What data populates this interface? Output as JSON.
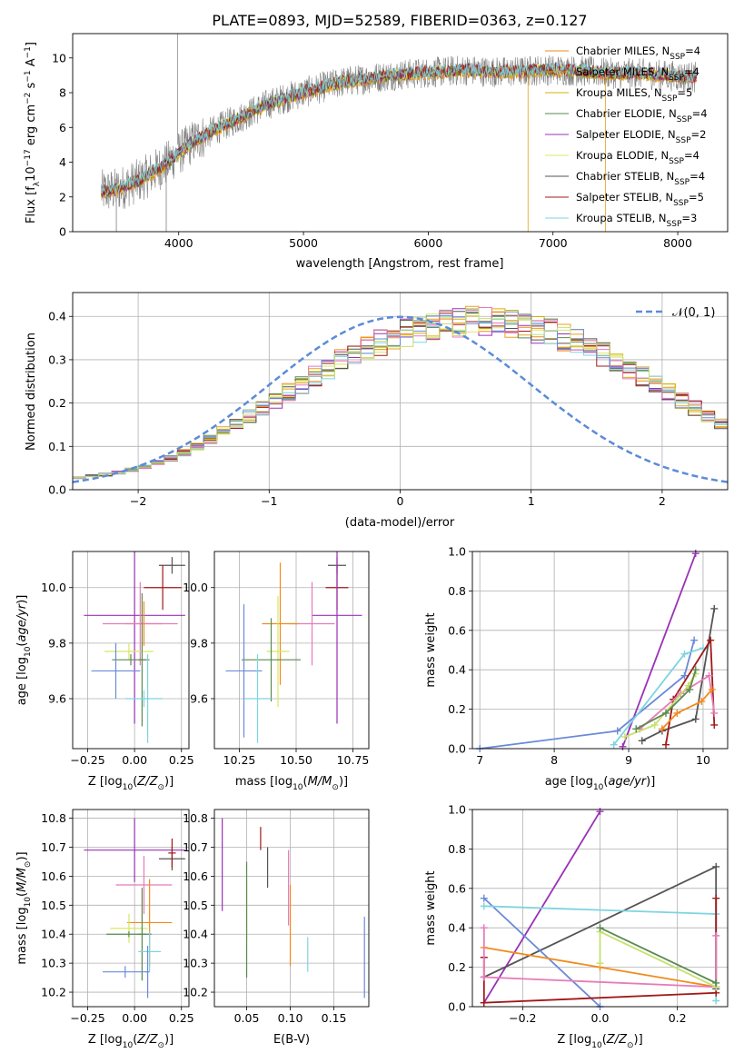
{
  "figure_title": "PLATE=0893, MJD=52589, FIBERID=0363, z=0.127",
  "colors": {
    "grid": "#b0b0b0",
    "normal_curve": "#5b8bd8",
    "series": [
      "#f28a1c",
      "#e8a020",
      "#d6b000",
      "#5a8a50",
      "#9b30b8",
      "#d8e860",
      "#555555",
      "#a01818",
      "#7ed4e0",
      "#e87ab8",
      "#6a8ad8",
      "#c7e070"
    ]
  },
  "chart_data": [
    {
      "id": "spectrum",
      "type": "line",
      "title": "PLATE=0893, MJD=52589, FIBERID=0363, z=0.127",
      "xlabel": "wavelength [Angstrom, rest frame]",
      "ylabel": "Flux [f_λ10^-17 erg cm^-2 s^-1 A^-1]",
      "xlim": [
        3150,
        8400
      ],
      "ylim": [
        0,
        11.4
      ],
      "xticks": [
        4000,
        5000,
        6000,
        7000,
        8000
      ],
      "yticks": [
        0,
        2,
        4,
        6,
        8,
        10
      ],
      "x": [
        3380,
        3500,
        3700,
        3900,
        4100,
        4300,
        4500,
        4700,
        4900,
        5100,
        5300,
        5500,
        5700,
        5900,
        6100,
        6300,
        6500,
        6700,
        6900,
        7100,
        7300,
        7500,
        7700,
        7900,
        8100
      ],
      "continuum": [
        2.3,
        2.4,
        3.0,
        3.9,
        5.1,
        5.9,
        6.6,
        7.3,
        7.8,
        8.2,
        8.6,
        8.8,
        9.0,
        9.1,
        9.2,
        9.3,
        9.2,
        9.2,
        9.3,
        9.3,
        9.2,
        9.1,
        9.1,
        9.0,
        8.9
      ],
      "legend": [
        {
          "label": "Chabrier MILES, N",
          "sub": "SSP",
          "eq": "=4",
          "color": "#f28a1c"
        },
        {
          "label": "Salpeter MILES, N",
          "sub": "SSP",
          "eq": "=4",
          "color": "#e8a020"
        },
        {
          "label": "Kroupa MILES, N",
          "sub": "SSP",
          "eq": "=5",
          "color": "#d6b000"
        },
        {
          "label": "Chabrier ELODIE, N",
          "sub": "SSP",
          "eq": "=4",
          "color": "#5a8a50"
        },
        {
          "label": "Salpeter ELODIE, N",
          "sub": "SSP",
          "eq": "=2",
          "color": "#9b30b8"
        },
        {
          "label": "Kroupa ELODIE, N",
          "sub": "SSP",
          "eq": "=4",
          "color": "#d8e860"
        },
        {
          "label": "Chabrier STELIB, N",
          "sub": "SSP",
          "eq": "=4",
          "color": "#555555"
        },
        {
          "label": "Salpeter STELIB, N",
          "sub": "SSP",
          "eq": "=5",
          "color": "#a01818"
        },
        {
          "label": "Kroupa STELIB, N",
          "sub": "SSP",
          "eq": "=3",
          "color": "#7ed4e0"
        }
      ],
      "legend_position": "upper right"
    },
    {
      "id": "residuals",
      "type": "histogram",
      "xlabel": "(data-model)/error",
      "ylabel": "Normed distribution",
      "xlim": [
        -2.5,
        2.5
      ],
      "ylim": [
        0,
        0.455
      ],
      "xticks": [
        -2,
        -1,
        0,
        1,
        2
      ],
      "yticks": [
        0.0,
        0.1,
        0.2,
        0.3,
        0.4
      ],
      "grid": true,
      "bin_edges_start": -2.5,
      "bin_width": 0.1,
      "base": [
        0.028,
        0.032,
        0.035,
        0.04,
        0.046,
        0.053,
        0.062,
        0.072,
        0.085,
        0.1,
        0.117,
        0.135,
        0.152,
        0.17,
        0.188,
        0.206,
        0.225,
        0.244,
        0.262,
        0.28,
        0.297,
        0.313,
        0.327,
        0.34,
        0.352,
        0.362,
        0.37,
        0.377,
        0.382,
        0.386,
        0.388,
        0.388,
        0.386,
        0.382,
        0.377,
        0.37,
        0.362,
        0.352,
        0.34,
        0.327,
        0.313,
        0.297,
        0.28,
        0.262,
        0.244,
        0.225,
        0.206,
        0.188,
        0.17,
        0.152,
        0.135
      ],
      "normal_label": "𝒩(0, 1)",
      "legend_position": "upper right"
    },
    {
      "id": "age-vs-Z",
      "type": "errorbar",
      "xlabel": "Z [log10(Z/Z⊙)]",
      "ylabel": "age [log10(age/yr)]",
      "xlim": [
        -0.33,
        0.29
      ],
      "ylim": [
        9.42,
        10.13
      ],
      "xticks": [
        -0.25,
        0.0,
        0.25
      ],
      "yticks": [
        9.6,
        9.8,
        10.0
      ],
      "grid": true,
      "points": [
        {
          "x": 0.0,
          "y": 9.9,
          "xerr": 0.27,
          "yerr": 0.39,
          "color": "#9b30b8"
        },
        {
          "x": 0.2,
          "y": 10.08,
          "xerr": 0.07,
          "yerr": 0.03,
          "color": "#555555"
        },
        {
          "x": 0.15,
          "y": 10.0,
          "xerr": 0.1,
          "yerr": 0.08,
          "color": "#a01818"
        },
        {
          "x": 0.05,
          "y": 9.87,
          "xerr": 0.1,
          "yerr": 0.08,
          "color": "#f28a1c"
        },
        {
          "x": 0.03,
          "y": 9.87,
          "xerr": 0.2,
          "yerr": 0.15,
          "color": "#e87ab8"
        },
        {
          "x": -0.03,
          "y": 9.77,
          "xerr": 0.13,
          "yerr": 0.03,
          "color": "#d8e860"
        },
        {
          "x": -0.02,
          "y": 9.74,
          "xerr": 0.1,
          "yerr": 0.02,
          "color": "#5a8a50"
        },
        {
          "x": 0.04,
          "y": 9.74,
          "xerr": 0.02,
          "yerr": 0.24,
          "color": "#5a8a50"
        },
        {
          "x": -0.1,
          "y": 9.7,
          "xerr": 0.13,
          "yerr": 0.1,
          "color": "#6a8ad8"
        },
        {
          "x": 0.05,
          "y": 9.6,
          "xerr": 0.1,
          "yerr": 0.03,
          "color": "#7ed4e0"
        },
        {
          "x": 0.07,
          "y": 9.6,
          "xerr": 0.01,
          "yerr": 0.16,
          "color": "#7ed4e0"
        }
      ]
    },
    {
      "id": "age-vs-mass",
      "type": "errorbar",
      "xlabel": "mass [log10(M/M⊙)]",
      "ylabel": "",
      "xlim": [
        10.14,
        10.82
      ],
      "ylim": [
        9.42,
        10.13
      ],
      "xticks": [
        10.25,
        10.5,
        10.75
      ],
      "yticks": [
        9.6,
        9.8,
        10.0
      ],
      "grid": true,
      "points": [
        {
          "x": 10.68,
          "y": 10.08,
          "xerr": 0.04,
          "yerr": 0.03,
          "color": "#555555"
        },
        {
          "x": 10.68,
          "y": 10.0,
          "xerr": 0.05,
          "yerr": 0.08,
          "color": "#a01818"
        },
        {
          "x": 10.68,
          "y": 9.9,
          "xerr": 0.11,
          "yerr": 0.39,
          "color": "#9b30b8"
        },
        {
          "x": 10.57,
          "y": 9.87,
          "xerr": 0.1,
          "yerr": 0.15,
          "color": "#e87ab8"
        },
        {
          "x": 10.43,
          "y": 9.87,
          "xerr": 0.08,
          "yerr": 0.22,
          "color": "#f28a1c"
        },
        {
          "x": 10.42,
          "y": 9.77,
          "xerr": 0.05,
          "yerr": 0.2,
          "color": "#d8e860"
        },
        {
          "x": 10.39,
          "y": 9.74,
          "xerr": 0.13,
          "yerr": 0.15,
          "color": "#5a8a50"
        },
        {
          "x": 10.27,
          "y": 9.7,
          "xerr": 0.08,
          "yerr": 0.24,
          "color": "#6a8ad8"
        },
        {
          "x": 10.33,
          "y": 9.6,
          "xerr": 0.06,
          "yerr": 0.16,
          "color": "#7ed4e0"
        }
      ]
    },
    {
      "id": "weight-vs-age",
      "type": "line",
      "xlabel": "age [log10(age/yr)]",
      "ylabel": "mass weight",
      "xlim": [
        6.9,
        10.33
      ],
      "ylim": [
        0,
        1
      ],
      "xticks": [
        7,
        8,
        9,
        10
      ],
      "yticks": [
        0.0,
        0.2,
        0.4,
        0.6,
        0.8,
        1.0
      ],
      "grid": true,
      "series": [
        {
          "color": "#9b30b8",
          "x": [
            8.92,
            9.9
          ],
          "y": [
            0.01,
            0.99
          ]
        },
        {
          "color": "#555555",
          "x": [
            9.18,
            9.45,
            9.9,
            10.15
          ],
          "y": [
            0.04,
            0.09,
            0.15,
            0.71
          ]
        },
        {
          "color": "#6a8ad8",
          "x": [
            7.0,
            8.85,
            9.75,
            9.88
          ],
          "y": [
            0.0,
            0.09,
            0.37,
            0.55
          ]
        },
        {
          "color": "#7ed4e0",
          "x": [
            8.8,
            9.75,
            10.0
          ],
          "y": [
            0.02,
            0.48,
            0.51
          ]
        },
        {
          "color": "#a01818",
          "x": [
            9.5,
            9.6,
            10.1,
            10.15
          ],
          "y": [
            0.02,
            0.25,
            0.55,
            0.12
          ]
        },
        {
          "color": "#e87ab8",
          "x": [
            9.15,
            9.7,
            10.08,
            10.15
          ],
          "y": [
            0.1,
            0.28,
            0.37,
            0.18
          ]
        },
        {
          "color": "#f28a1c",
          "x": [
            9.45,
            9.65,
            9.98,
            10.12
          ],
          "y": [
            0.1,
            0.18,
            0.24,
            0.3
          ]
        },
        {
          "color": "#c7e070",
          "x": [
            8.95,
            9.35,
            9.8,
            9.9
          ],
          "y": [
            0.06,
            0.12,
            0.32,
            0.38
          ]
        },
        {
          "color": "#5a8a50",
          "x": [
            9.1,
            9.5,
            9.82,
            9.9
          ],
          "y": [
            0.1,
            0.18,
            0.3,
            0.4
          ]
        }
      ]
    },
    {
      "id": "mass-vs-Z",
      "type": "errorbar",
      "xlabel": "Z [log10(Z/Z⊙)]",
      "ylabel": "mass [log10(M/M⊙)]",
      "xlim": [
        -0.33,
        0.29
      ],
      "ylim": [
        10.15,
        10.83
      ],
      "xticks": [
        -0.25,
        0.0,
        0.25
      ],
      "yticks": [
        10.2,
        10.3,
        10.4,
        10.5,
        10.6,
        10.7,
        10.8
      ],
      "grid": true,
      "points": [
        {
          "x": 0.0,
          "y": 10.69,
          "xerr": 0.27,
          "yerr": 0.11,
          "color": "#9b30b8"
        },
        {
          "x": 0.2,
          "y": 10.66,
          "xerr": 0.07,
          "yerr": 0.04,
          "color": "#555555"
        },
        {
          "x": 0.2,
          "y": 10.68,
          "xerr": 0.02,
          "yerr": 0.05,
          "color": "#a01818"
        },
        {
          "x": 0.05,
          "y": 10.57,
          "xerr": 0.15,
          "yerr": 0.1,
          "color": "#e87ab8"
        },
        {
          "x": 0.08,
          "y": 10.44,
          "xerr": 0.12,
          "yerr": 0.15,
          "color": "#f28a1c"
        },
        {
          "x": -0.03,
          "y": 10.42,
          "xerr": 0.1,
          "yerr": 0.05,
          "color": "#d8e860"
        },
        {
          "x": -0.03,
          "y": 10.4,
          "xerr": 0.12,
          "yerr": 0.01,
          "color": "#5a8a50"
        },
        {
          "x": 0.04,
          "y": 10.4,
          "xerr": 0.02,
          "yerr": 0.16,
          "color": "#5a8a50"
        },
        {
          "x": 0.08,
          "y": 10.34,
          "xerr": 0.06,
          "yerr": 0.07,
          "color": "#7ed4e0"
        },
        {
          "x": -0.05,
          "y": 10.27,
          "xerr": 0.12,
          "yerr": 0.02,
          "color": "#6a8ad8"
        },
        {
          "x": 0.07,
          "y": 10.27,
          "xerr": 0.01,
          "yerr": 0.09,
          "color": "#6a8ad8"
        }
      ]
    },
    {
      "id": "mass-vs-ebv",
      "type": "errorbar",
      "xlabel": "E(B-V)",
      "ylabel": "",
      "xlim": [
        0.013,
        0.19
      ],
      "ylim": [
        10.15,
        10.83
      ],
      "xticks": [
        0.05,
        0.1,
        0.15
      ],
      "yticks": [
        10.2,
        10.3,
        10.4,
        10.5,
        10.6,
        10.7,
        10.8
      ],
      "grid": true,
      "points": [
        {
          "x": 0.022,
          "y": 10.64,
          "xerr": 0,
          "yerr": 0.16,
          "color": "#9b30b8"
        },
        {
          "x": 0.05,
          "y": 10.48,
          "xerr": 0,
          "yerr": 0.1,
          "color": "#d8e860"
        },
        {
          "x": 0.05,
          "y": 10.45,
          "xerr": 0,
          "yerr": 0.2,
          "color": "#5a8a50"
        },
        {
          "x": 0.066,
          "y": 10.73,
          "xerr": 0,
          "yerr": 0.04,
          "color": "#a01818"
        },
        {
          "x": 0.074,
          "y": 10.63,
          "xerr": 0,
          "yerr": 0.07,
          "color": "#555555"
        },
        {
          "x": 0.098,
          "y": 10.56,
          "xerr": 0,
          "yerr": 0.13,
          "color": "#e87ab8"
        },
        {
          "x": 0.1,
          "y": 10.43,
          "xerr": 0,
          "yerr": 0.14,
          "color": "#f28a1c"
        },
        {
          "x": 0.12,
          "y": 10.33,
          "xerr": 0,
          "yerr": 0.06,
          "color": "#7ed4e0"
        },
        {
          "x": 0.185,
          "y": 10.32,
          "xerr": 0,
          "yerr": 0.14,
          "color": "#6a8ad8"
        }
      ]
    },
    {
      "id": "weight-vs-Z",
      "type": "line",
      "xlabel": "Z [log10(Z/Z⊙)]",
      "ylabel": "mass weight",
      "xlim": [
        -0.33,
        0.33
      ],
      "ylim": [
        0,
        1
      ],
      "xticks": [
        -0.2,
        0.0,
        0.2
      ],
      "yticks": [
        0.0,
        0.2,
        0.4,
        0.6,
        0.8,
        1.0
      ],
      "grid": true,
      "series": [
        {
          "color": "#9b30b8",
          "x": [
            -0.3,
            0.0
          ],
          "y": [
            0.02,
            0.99
          ]
        },
        {
          "color": "#555555",
          "x": [
            -0.3,
            0.3,
            0.3
          ],
          "y": [
            0.15,
            0.71,
            0.09
          ]
        },
        {
          "color": "#6a8ad8",
          "x": [
            -0.3,
            0.0
          ],
          "y": [
            0.55,
            0.0
          ]
        },
        {
          "color": "#7ed4e0",
          "x": [
            -0.3,
            0.3,
            0.3
          ],
          "y": [
            0.51,
            0.47,
            0.03
          ]
        },
        {
          "color": "#a01818",
          "x": [
            -0.3,
            -0.3,
            0.3,
            0.3
          ],
          "y": [
            0.25,
            0.02,
            0.07,
            0.55
          ]
        },
        {
          "color": "#f28a1c",
          "x": [
            -0.3,
            0.0,
            0.3
          ],
          "y": [
            0.3,
            0.2,
            0.1
          ]
        },
        {
          "color": "#e87ab8",
          "x": [
            -0.3,
            -0.3,
            0.3,
            0.3
          ],
          "y": [
            0.4,
            0.15,
            0.1,
            0.36
          ]
        },
        {
          "color": "#c7e070",
          "x": [
            0.0,
            0.0,
            0.3
          ],
          "y": [
            0.22,
            0.38,
            0.1
          ]
        },
        {
          "color": "#5a8a50",
          "x": [
            0.0,
            0.3
          ],
          "y": [
            0.4,
            0.12
          ]
        }
      ]
    }
  ]
}
